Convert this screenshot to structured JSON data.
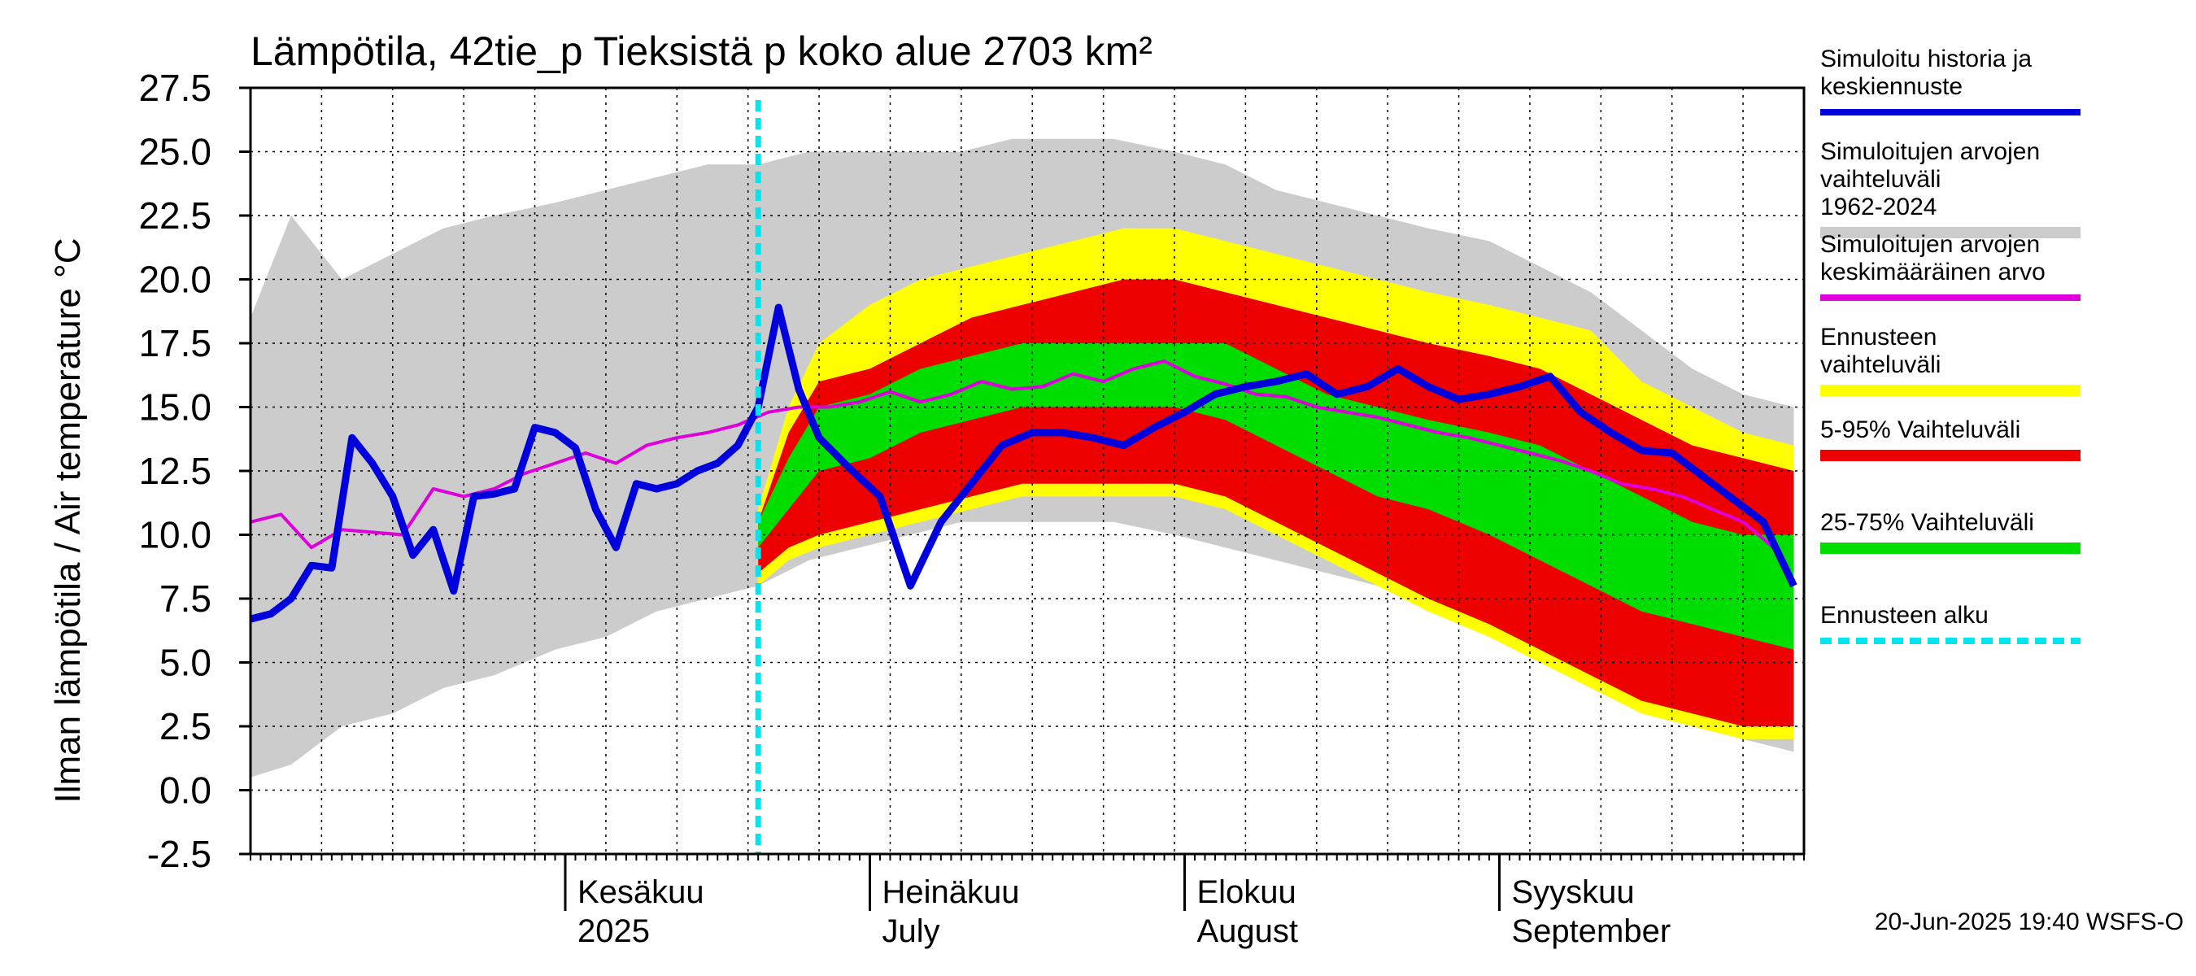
{
  "chart_data": {
    "type": "area",
    "title": "Lämpötila, 42tie_p Tieksistä p koko alue 2703 km²",
    "ylabel": "Ilman lämpötila / Air temperature    °C",
    "ylim": [
      -2.5,
      27.5
    ],
    "yticks": [
      "27.5",
      "25.0",
      "22.5",
      "20.0",
      "17.5",
      "15.0",
      "12.5",
      "10.0",
      "7.5",
      "5.0",
      "2.5",
      "0.0",
      "-2.5"
    ],
    "x_start": "2025-05-01",
    "x_end": "2025-09-30",
    "forecast_start": "2025-06-20",
    "month_labels": [
      {
        "fi": "Kesäkuu",
        "en": "2025",
        "date": "2025-06-01"
      },
      {
        "fi": "Heinäkuu",
        "en": "July",
        "date": "2025-07-01"
      },
      {
        "fi": "Elokuu",
        "en": "August",
        "date": "2025-08-01"
      },
      {
        "fi": "Syyskuu",
        "en": "September",
        "date": "2025-09-01"
      }
    ],
    "legend": [
      {
        "label": "Simuloitu historia ja keskiennuste",
        "color": "#0000dd",
        "style": "line"
      },
      {
        "label": "Simuloitujen arvojen vaihteluväli 1962-2024",
        "color": "#cccccc",
        "style": "band"
      },
      {
        "label": "Simuloitujen arvojen keskimääräinen arvo",
        "color": "#dd00dd",
        "style": "line"
      },
      {
        "label": "Ennusteen vaihteluväli",
        "color": "#ffff00",
        "style": "band"
      },
      {
        "label": "5-95% Vaihteluväli",
        "color": "#ee0000",
        "style": "band"
      },
      {
        "label": "25-75% Vaihteluväli",
        "color": "#00dd00",
        "style": "band"
      },
      {
        "label": "Ennusteen alku",
        "color": "#00e5ee",
        "style": "dashed"
      }
    ],
    "series": [
      {
        "name": "Simuloitujen arvojen vaihteluväli 1962-2024",
        "type": "band",
        "x": [
          "2025-05-01",
          "2025-05-05",
          "2025-05-10",
          "2025-05-15",
          "2025-05-20",
          "2025-05-25",
          "2025-05-31",
          "2025-06-05",
          "2025-06-10",
          "2025-06-15",
          "2025-06-20",
          "2025-06-25",
          "2025-06-30",
          "2025-07-05",
          "2025-07-10",
          "2025-07-15",
          "2025-07-20",
          "2025-07-25",
          "2025-07-31",
          "2025-08-05",
          "2025-08-10",
          "2025-08-15",
          "2025-08-20",
          "2025-08-25",
          "2025-08-31",
          "2025-09-05",
          "2025-09-10",
          "2025-09-15",
          "2025-09-20",
          "2025-09-25",
          "2025-09-30"
        ],
        "low": [
          0.5,
          1.0,
          2.5,
          3.0,
          4.0,
          4.5,
          5.5,
          6.0,
          7.0,
          7.5,
          8.0,
          9.0,
          9.5,
          10.0,
          10.5,
          10.5,
          10.5,
          10.5,
          10.0,
          9.5,
          9.0,
          8.5,
          8.0,
          7.5,
          6.0,
          5.0,
          4.0,
          3.0,
          2.5,
          2.0,
          1.5
        ],
        "high": [
          18.5,
          22.5,
          20.0,
          21.0,
          22.0,
          22.5,
          23.0,
          23.5,
          24.0,
          24.5,
          24.5,
          25.0,
          25.0,
          25.0,
          25.0,
          25.5,
          25.5,
          25.5,
          25.0,
          24.5,
          23.5,
          23.0,
          22.5,
          22.0,
          21.5,
          20.5,
          19.5,
          18.0,
          16.5,
          15.5,
          15.0
        ]
      },
      {
        "name": "Ennusteen vaihteluväli",
        "type": "band",
        "x": [
          "2025-06-20",
          "2025-06-23",
          "2025-06-26",
          "2025-07-01",
          "2025-07-06",
          "2025-07-11",
          "2025-07-16",
          "2025-07-21",
          "2025-07-26",
          "2025-07-31",
          "2025-08-05",
          "2025-08-10",
          "2025-08-15",
          "2025-08-20",
          "2025-08-25",
          "2025-08-31",
          "2025-09-05",
          "2025-09-10",
          "2025-09-15",
          "2025-09-20",
          "2025-09-25",
          "2025-09-30"
        ],
        "low": [
          8.0,
          9.0,
          9.5,
          10.0,
          10.5,
          11.0,
          11.5,
          11.5,
          11.5,
          11.5,
          11.0,
          10.0,
          9.0,
          8.0,
          7.0,
          6.0,
          5.0,
          4.0,
          3.0,
          2.5,
          2.0,
          2.0
        ],
        "high": [
          11.0,
          15.0,
          17.5,
          19.0,
          20.0,
          20.5,
          21.0,
          21.5,
          22.0,
          22.0,
          21.5,
          21.0,
          20.5,
          20.0,
          19.5,
          19.0,
          18.5,
          18.0,
          16.0,
          15.0,
          14.0,
          13.5
        ]
      },
      {
        "name": "5-95% Vaihteluväli",
        "type": "band",
        "x": [
          "2025-06-20",
          "2025-06-23",
          "2025-06-26",
          "2025-07-01",
          "2025-07-06",
          "2025-07-11",
          "2025-07-16",
          "2025-07-21",
          "2025-07-26",
          "2025-07-31",
          "2025-08-05",
          "2025-08-10",
          "2025-08-15",
          "2025-08-20",
          "2025-08-25",
          "2025-08-31",
          "2025-09-05",
          "2025-09-10",
          "2025-09-15",
          "2025-09-20",
          "2025-09-25",
          "2025-09-30"
        ],
        "low": [
          8.5,
          9.5,
          10.0,
          10.5,
          11.0,
          11.5,
          12.0,
          12.0,
          12.0,
          12.0,
          11.5,
          10.5,
          9.5,
          8.5,
          7.5,
          6.5,
          5.5,
          4.5,
          3.5,
          3.0,
          2.5,
          2.5
        ],
        "high": [
          10.5,
          14.0,
          16.0,
          16.5,
          17.5,
          18.5,
          19.0,
          19.5,
          20.0,
          20.0,
          19.5,
          19.0,
          18.5,
          18.0,
          17.5,
          17.0,
          16.5,
          15.5,
          14.5,
          13.5,
          13.0,
          12.5
        ]
      },
      {
        "name": "25-75% Vaihteluväli",
        "type": "band",
        "x": [
          "2025-06-20",
          "2025-06-23",
          "2025-06-26",
          "2025-07-01",
          "2025-07-06",
          "2025-07-11",
          "2025-07-16",
          "2025-07-21",
          "2025-07-26",
          "2025-07-31",
          "2025-08-05",
          "2025-08-10",
          "2025-08-15",
          "2025-08-20",
          "2025-08-25",
          "2025-08-31",
          "2025-09-05",
          "2025-09-10",
          "2025-09-15",
          "2025-09-20",
          "2025-09-25",
          "2025-09-30"
        ],
        "low": [
          9.5,
          11.0,
          12.5,
          13.0,
          14.0,
          14.5,
          15.0,
          15.0,
          15.0,
          15.0,
          14.5,
          13.5,
          12.5,
          11.5,
          11.0,
          10.0,
          9.0,
          8.0,
          7.0,
          6.5,
          6.0,
          5.5
        ],
        "high": [
          10.5,
          13.0,
          15.0,
          15.5,
          16.5,
          17.0,
          17.5,
          17.5,
          17.5,
          17.5,
          17.5,
          16.5,
          15.5,
          15.0,
          14.5,
          14.0,
          13.5,
          12.5,
          11.5,
          10.5,
          10.0,
          10.0
        ]
      },
      {
        "name": "Simuloitujen arvojen keskimääräinen arvo",
        "type": "line",
        "x": [
          "2025-05-01",
          "2025-05-04",
          "2025-05-07",
          "2025-05-10",
          "2025-05-13",
          "2025-05-16",
          "2025-05-19",
          "2025-05-22",
          "2025-05-25",
          "2025-05-28",
          "2025-05-31",
          "2025-06-03",
          "2025-06-06",
          "2025-06-09",
          "2025-06-12",
          "2025-06-15",
          "2025-06-18",
          "2025-06-21",
          "2025-06-24",
          "2025-06-27",
          "2025-06-30",
          "2025-07-03",
          "2025-07-06",
          "2025-07-09",
          "2025-07-12",
          "2025-07-15",
          "2025-07-18",
          "2025-07-21",
          "2025-07-24",
          "2025-07-27",
          "2025-07-30",
          "2025-08-02",
          "2025-08-05",
          "2025-08-08",
          "2025-08-11",
          "2025-08-14",
          "2025-08-17",
          "2025-08-20",
          "2025-08-23",
          "2025-08-26",
          "2025-08-29",
          "2025-09-01",
          "2025-09-04",
          "2025-09-07",
          "2025-09-10",
          "2025-09-13",
          "2025-09-16",
          "2025-09-19",
          "2025-09-22",
          "2025-09-25",
          "2025-09-28",
          "2025-09-30"
        ],
        "y": [
          10.5,
          10.8,
          9.5,
          10.2,
          10.1,
          10.0,
          11.8,
          11.5,
          11.8,
          12.4,
          12.8,
          13.2,
          12.8,
          13.5,
          13.8,
          14.0,
          14.3,
          14.8,
          15.0,
          15.0,
          15.2,
          15.6,
          15.2,
          15.5,
          16.0,
          15.7,
          15.8,
          16.3,
          16.0,
          16.5,
          16.8,
          16.2,
          15.9,
          15.5,
          15.4,
          15.0,
          14.8,
          14.6,
          14.3,
          14.0,
          13.8,
          13.5,
          13.2,
          12.9,
          12.5,
          12.0,
          11.8,
          11.5,
          11.0,
          10.5,
          9.5,
          8.2
        ]
      },
      {
        "name": "Simuloitu historia ja keskiennuste",
        "type": "line",
        "x": [
          "2025-05-01",
          "2025-05-03",
          "2025-05-05",
          "2025-05-07",
          "2025-05-09",
          "2025-05-11",
          "2025-05-13",
          "2025-05-15",
          "2025-05-17",
          "2025-05-19",
          "2025-05-21",
          "2025-05-23",
          "2025-05-25",
          "2025-05-27",
          "2025-05-29",
          "2025-05-31",
          "2025-06-02",
          "2025-06-04",
          "2025-06-06",
          "2025-06-08",
          "2025-06-10",
          "2025-06-12",
          "2025-06-14",
          "2025-06-16",
          "2025-06-18",
          "2025-06-20",
          "2025-06-22",
          "2025-06-24",
          "2025-06-26",
          "2025-06-29",
          "2025-07-02",
          "2025-07-05",
          "2025-07-08",
          "2025-07-11",
          "2025-07-14",
          "2025-07-17",
          "2025-07-20",
          "2025-07-23",
          "2025-07-26",
          "2025-07-29",
          "2025-08-01",
          "2025-08-04",
          "2025-08-07",
          "2025-08-10",
          "2025-08-13",
          "2025-08-16",
          "2025-08-19",
          "2025-08-22",
          "2025-08-25",
          "2025-08-28",
          "2025-08-31",
          "2025-09-03",
          "2025-09-06",
          "2025-09-09",
          "2025-09-12",
          "2025-09-15",
          "2025-09-18",
          "2025-09-21",
          "2025-09-24",
          "2025-09-27",
          "2025-09-30"
        ],
        "y": [
          6.7,
          6.9,
          7.5,
          8.8,
          8.7,
          13.8,
          12.8,
          11.5,
          9.2,
          10.2,
          7.8,
          11.5,
          11.6,
          11.8,
          14.2,
          14.0,
          13.4,
          11.0,
          9.5,
          12.0,
          11.8,
          12.0,
          12.5,
          12.8,
          13.5,
          15.0,
          18.9,
          15.7,
          13.8,
          12.6,
          11.5,
          8.0,
          10.5,
          12.0,
          13.5,
          14.0,
          14.0,
          13.8,
          13.5,
          14.2,
          14.8,
          15.5,
          15.8,
          16.0,
          16.3,
          15.5,
          15.8,
          16.5,
          15.8,
          15.3,
          15.5,
          15.8,
          16.2,
          14.8,
          14.0,
          13.3,
          13.2,
          12.3,
          11.4,
          10.5,
          8.0
        ]
      }
    ]
  },
  "timestamp": "20-Jun-2025 19:40 WSFS-O"
}
